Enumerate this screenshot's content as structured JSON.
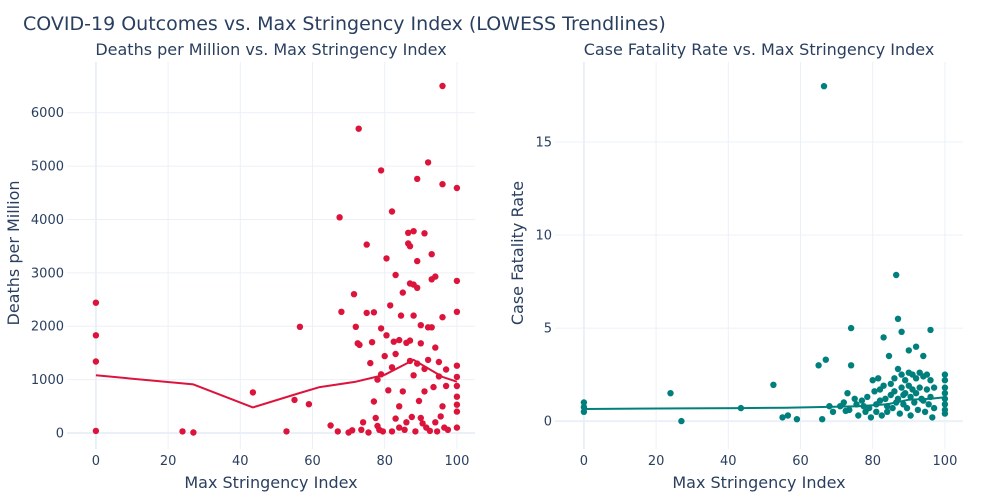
{
  "title": "COVID-19 Outcomes vs. Max Stringency Index (LOWESS Trendlines)",
  "chart_data": [
    {
      "type": "scatter",
      "title": "Deaths per Million vs. Max Stringency Index",
      "xlabel": "Max Stringency Index",
      "ylabel": "Deaths per Million",
      "xlim": [
        -8,
        105
      ],
      "ylim": [
        -300,
        6950
      ],
      "xticks": [
        0,
        20,
        40,
        60,
        80,
        100
      ],
      "yticks": [
        0,
        1000,
        2000,
        3000,
        4000,
        5000,
        6000
      ],
      "grid": true,
      "legend": "none",
      "marker_color": "#dc143c",
      "line_color": "#dc143c",
      "points": [
        [
          0,
          2440
        ],
        [
          0,
          1830
        ],
        [
          0,
          1340
        ],
        [
          0,
          40
        ],
        [
          24,
          30
        ],
        [
          27,
          10
        ],
        [
          43.5,
          760
        ],
        [
          52.8,
          30
        ],
        [
          55,
          620
        ],
        [
          56.5,
          1990
        ],
        [
          59,
          540
        ],
        [
          65,
          140
        ],
        [
          67,
          30
        ],
        [
          67.5,
          4040
        ],
        [
          68,
          2270
        ],
        [
          70,
          10
        ],
        [
          71,
          50
        ],
        [
          71.5,
          2600
        ],
        [
          72,
          1990
        ],
        [
          72.5,
          1680
        ],
        [
          72.8,
          5700
        ],
        [
          73,
          1650
        ],
        [
          73.5,
          60
        ],
        [
          74,
          200
        ],
        [
          75,
          3530
        ],
        [
          75,
          2250
        ],
        [
          75.5,
          10
        ],
        [
          76,
          1310
        ],
        [
          76.5,
          1700
        ],
        [
          77,
          2260
        ],
        [
          77,
          590
        ],
        [
          77.5,
          280
        ],
        [
          78,
          1000
        ],
        [
          78,
          130
        ],
        [
          78.5,
          60
        ],
        [
          79,
          4920
        ],
        [
          79,
          1960
        ],
        [
          79,
          1100
        ],
        [
          79.5,
          30
        ],
        [
          80,
          1440
        ],
        [
          80.5,
          3270
        ],
        [
          80.5,
          1830
        ],
        [
          81,
          800
        ],
        [
          81.5,
          2390
        ],
        [
          82,
          1230
        ],
        [
          82,
          4150
        ],
        [
          82,
          30
        ],
        [
          82.5,
          1710
        ],
        [
          83,
          2960
        ],
        [
          83,
          1480
        ],
        [
          83,
          270
        ],
        [
          84,
          1740
        ],
        [
          84,
          500
        ],
        [
          84,
          100
        ],
        [
          84.5,
          2200
        ],
        [
          85,
          2630
        ],
        [
          85,
          780
        ],
        [
          85.5,
          60
        ],
        [
          86,
          1690
        ],
        [
          86,
          200
        ],
        [
          86.5,
          3750
        ],
        [
          86.5,
          3550
        ],
        [
          87,
          3500
        ],
        [
          87,
          2800
        ],
        [
          87,
          1730
        ],
        [
          87,
          1350
        ],
        [
          87.5,
          300
        ],
        [
          88,
          3780
        ],
        [
          88,
          2780
        ],
        [
          88,
          2200
        ],
        [
          88,
          1080
        ],
        [
          88.5,
          30
        ],
        [
          89,
          4760
        ],
        [
          89,
          3220
        ],
        [
          89,
          2720
        ],
        [
          89,
          1300
        ],
        [
          89.5,
          600
        ],
        [
          90,
          2020
        ],
        [
          90,
          1680
        ],
        [
          90,
          280
        ],
        [
          90.5,
          180
        ],
        [
          91,
          3740
        ],
        [
          91,
          1200
        ],
        [
          91,
          780
        ],
        [
          91.5,
          100
        ],
        [
          92,
          5070
        ],
        [
          92,
          1980
        ],
        [
          92,
          1370
        ],
        [
          92.5,
          40
        ],
        [
          93,
          3350
        ],
        [
          93,
          2880
        ],
        [
          93,
          1980
        ],
        [
          93.5,
          860
        ],
        [
          94,
          2930
        ],
        [
          94,
          1600
        ],
        [
          94,
          200
        ],
        [
          94.5,
          30
        ],
        [
          95,
          1330
        ],
        [
          95,
          1060
        ],
        [
          95.5,
          310
        ],
        [
          96,
          6500
        ],
        [
          96,
          4660
        ],
        [
          96,
          2170
        ],
        [
          96,
          500
        ],
        [
          96.5,
          100
        ],
        [
          97,
          1190
        ],
        [
          97,
          880
        ],
        [
          97.5,
          60
        ],
        [
          100,
          4590
        ],
        [
          100,
          2850
        ],
        [
          100,
          2270
        ],
        [
          100,
          1260
        ],
        [
          100,
          1050
        ],
        [
          100,
          880
        ],
        [
          100,
          680
        ],
        [
          100,
          530
        ],
        [
          100,
          400
        ],
        [
          100,
          100
        ]
      ],
      "trend": [
        [
          0,
          1080
        ],
        [
          27,
          910
        ],
        [
          43.5,
          480
        ],
        [
          56,
          740
        ],
        [
          62,
          860
        ],
        [
          72,
          960
        ],
        [
          80,
          1090
        ],
        [
          88,
          1370
        ],
        [
          96,
          1050
        ],
        [
          100,
          960
        ]
      ]
    },
    {
      "type": "scatter",
      "title": "Case Fatality Rate vs. Max Stringency Index",
      "xlabel": "Max Stringency Index",
      "ylabel": "Case Fatality Rate",
      "xlim": [
        -8,
        105
      ],
      "ylim": [
        -1.5,
        19.3
      ],
      "xticks": [
        0,
        20,
        40,
        60,
        80,
        100
      ],
      "yticks": [
        0,
        5,
        10,
        15
      ],
      "grid": true,
      "legend": "none",
      "marker_color": "#00807d",
      "line_color": "#00807d",
      "points": [
        [
          0,
          1.0
        ],
        [
          0,
          0.75
        ],
        [
          0,
          0.5
        ],
        [
          24,
          1.5
        ],
        [
          27,
          0.0
        ],
        [
          43.5,
          0.7
        ],
        [
          52.5,
          1.95
        ],
        [
          55,
          0.2
        ],
        [
          56.5,
          0.3
        ],
        [
          59,
          0.1
        ],
        [
          65,
          3.0
        ],
        [
          66,
          0.1
        ],
        [
          66.5,
          18.0
        ],
        [
          67,
          3.3
        ],
        [
          68,
          0.8
        ],
        [
          69,
          0.5
        ],
        [
          71,
          0.8
        ],
        [
          72,
          1.0
        ],
        [
          72.5,
          0.55
        ],
        [
          73,
          1.5
        ],
        [
          73.5,
          0.6
        ],
        [
          74,
          5.0
        ],
        [
          74,
          3.0
        ],
        [
          75,
          1.2
        ],
        [
          75.5,
          0.9
        ],
        [
          76,
          0.3
        ],
        [
          77,
          1.1
        ],
        [
          77.5,
          0.8
        ],
        [
          78,
          0.5
        ],
        [
          78.5,
          1.3
        ],
        [
          79,
          0.7
        ],
        [
          79.5,
          0.2
        ],
        [
          80,
          2.2
        ],
        [
          80.5,
          1.6
        ],
        [
          81,
          0.9
        ],
        [
          81,
          0.5
        ],
        [
          81.5,
          2.3
        ],
        [
          82,
          1.7
        ],
        [
          82,
          1.1
        ],
        [
          82.5,
          0.3
        ],
        [
          83,
          4.5
        ],
        [
          83,
          1.9
        ],
        [
          83.5,
          1.2
        ],
        [
          84,
          0.8
        ],
        [
          84,
          0.5
        ],
        [
          84.5,
          3.5
        ],
        [
          85,
          2.0
        ],
        [
          85,
          1.4
        ],
        [
          85.5,
          0.7
        ],
        [
          86,
          2.3
        ],
        [
          86,
          1.6
        ],
        [
          86.5,
          7.85
        ],
        [
          86.5,
          1.0
        ],
        [
          87,
          5.5
        ],
        [
          87,
          2.8
        ],
        [
          87,
          1.2
        ],
        [
          87.5,
          0.4
        ],
        [
          88,
          4.8
        ],
        [
          88,
          2.5
        ],
        [
          88,
          1.8
        ],
        [
          88.5,
          1.4
        ],
        [
          88.5,
          0.9
        ],
        [
          89,
          2.2
        ],
        [
          89,
          1.5
        ],
        [
          89.5,
          0.7
        ],
        [
          90,
          3.8
        ],
        [
          90,
          2.6
        ],
        [
          90,
          1.9
        ],
        [
          90.5,
          1.3
        ],
        [
          90.5,
          0.3
        ],
        [
          91,
          2.5
        ],
        [
          91,
          1.7
        ],
        [
          91.5,
          1.0
        ],
        [
          92,
          4.0
        ],
        [
          92,
          2.3
        ],
        [
          92,
          1.5
        ],
        [
          92.5,
          0.6
        ],
        [
          93,
          2.6
        ],
        [
          93,
          1.8
        ],
        [
          93.5,
          1.2
        ],
        [
          94,
          3.5
        ],
        [
          94,
          2.4
        ],
        [
          94,
          1.1
        ],
        [
          94.5,
          0.5
        ],
        [
          95,
          2.5
        ],
        [
          95,
          1.7
        ],
        [
          95.5,
          0.9
        ],
        [
          96,
          4.9
        ],
        [
          96,
          2.2
        ],
        [
          96,
          1.3
        ],
        [
          96.5,
          0.2
        ],
        [
          97,
          1.8
        ],
        [
          97,
          0.7
        ],
        [
          100,
          2.5
        ],
        [
          100,
          2.2
        ],
        [
          100,
          1.8
        ],
        [
          100,
          1.5
        ],
        [
          100,
          1.2
        ],
        [
          100,
          0.9
        ],
        [
          100,
          0.6
        ],
        [
          100,
          0.4
        ]
      ],
      "trend": [
        [
          0,
          0.65
        ],
        [
          27,
          0.68
        ],
        [
          43.5,
          0.7
        ],
        [
          56,
          0.72
        ],
        [
          66,
          0.76
        ],
        [
          76,
          0.8
        ],
        [
          84,
          0.9
        ],
        [
          90,
          1.15
        ],
        [
          96,
          1.2
        ],
        [
          100,
          1.28
        ]
      ]
    }
  ]
}
